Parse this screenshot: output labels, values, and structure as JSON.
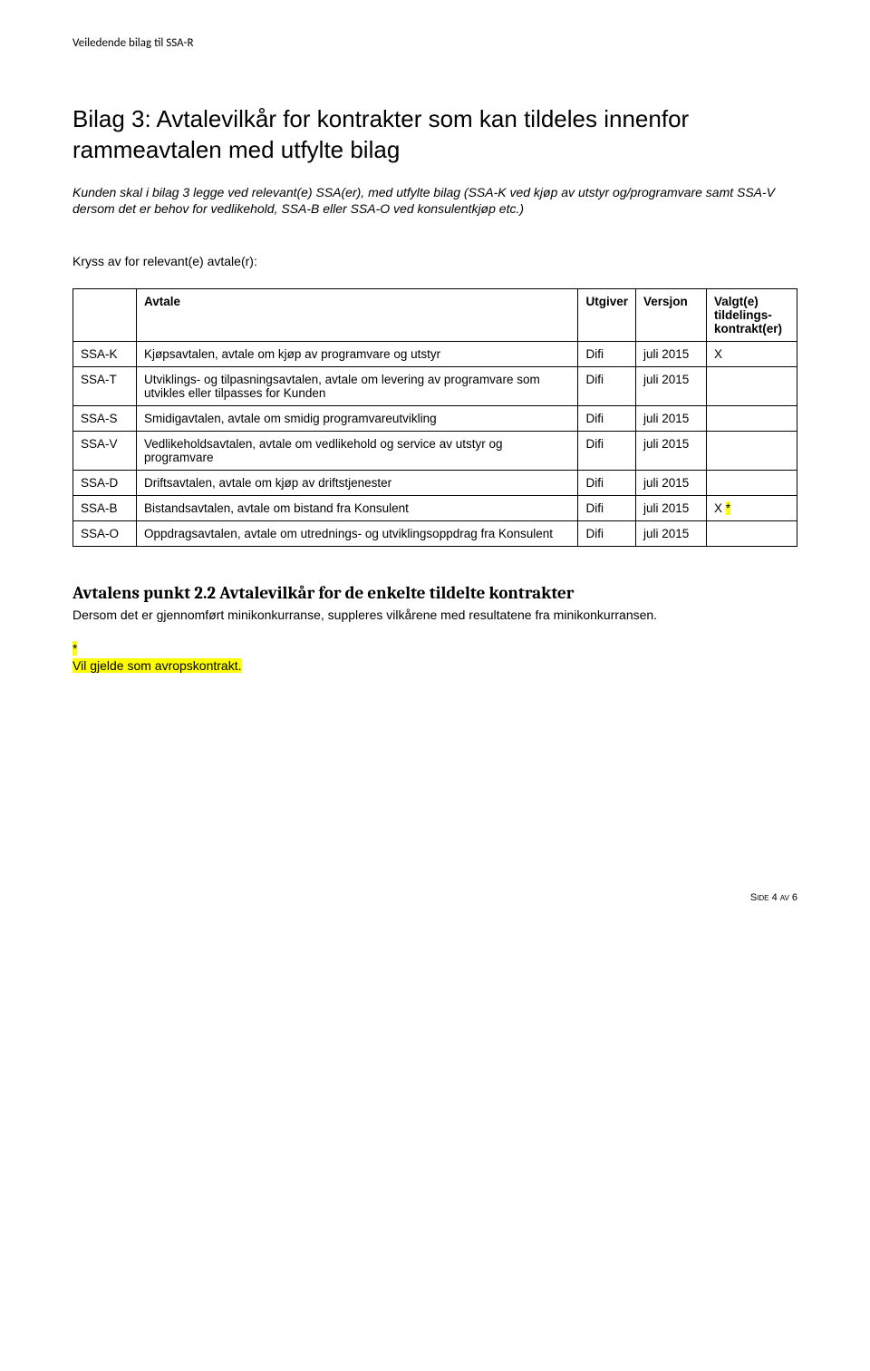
{
  "header": "Veiledende bilag til SSA-R",
  "title": "Bilag 3: Avtalevilkår for kontrakter som kan tildeles innenfor rammeavtalen med utfylte bilag",
  "intro": "Kunden skal i bilag 3 legge ved relevant(e) SSA(er), med utfylte bilag (SSA-K ved kjøp av utstyr og/programvare samt SSA-V dersom det er behov for vedlikehold, SSA-B eller SSA-O ved konsulentkjøp etc.)",
  "kryss": "Kryss av for relevant(e) avtale(r):",
  "table": {
    "headers": {
      "code": "",
      "avtale": "Avtale",
      "utgiver": "Utgiver",
      "versjon": "Versjon",
      "valgt": "Valgt(e) tildelings-kontrakt(er)"
    },
    "rows": [
      {
        "code": "SSA-K",
        "avtale": "Kjøpsavtalen, avtale om kjøp av programvare og utstyr",
        "utgiver": "Difi",
        "versjon": "juli 2015",
        "valgt": "X",
        "valgt_hl": ""
      },
      {
        "code": "SSA-T",
        "avtale": "Utviklings- og tilpasningsavtalen, avtale om levering av programvare som utvikles eller tilpasses for Kunden",
        "utgiver": "Difi",
        "versjon": "juli 2015",
        "valgt": "",
        "valgt_hl": ""
      },
      {
        "code": "SSA-S",
        "avtale": "Smidigavtalen, avtale om smidig programvareutvikling",
        "utgiver": "Difi",
        "versjon": "juli 2015",
        "valgt": "",
        "valgt_hl": ""
      },
      {
        "code": "SSA-V",
        "avtale": "Vedlikeholdsavtalen, avtale om vedlikehold og service av utstyr og programvare",
        "utgiver": "Difi",
        "versjon": "juli 2015",
        "valgt": "",
        "valgt_hl": ""
      },
      {
        "code": "SSA-D",
        "avtale": "Driftsavtalen, avtale om kjøp av driftstjenester",
        "utgiver": "Difi",
        "versjon": "juli 2015",
        "valgt": "",
        "valgt_hl": ""
      },
      {
        "code": "SSA-B",
        "avtale": "Bistandsavtalen, avtale om bistand fra Konsulent",
        "utgiver": "Difi",
        "versjon": "juli 2015",
        "valgt": "X ",
        "valgt_hl": "*"
      },
      {
        "code": "SSA-O",
        "avtale": "Oppdragsavtalen, avtale om utrednings- og utviklingsoppdrag fra Konsulent",
        "utgiver": "Difi",
        "versjon": "juli 2015",
        "valgt": "",
        "valgt_hl": ""
      }
    ]
  },
  "section": {
    "title": "Avtalens punkt 2.2 Avtalevilkår for de enkelte tildelte kontrakter",
    "body": "Dersom det er gjennomført minikonkurranse, suppleres vilkårene med resultatene fra minikonkurransen."
  },
  "footnote": {
    "star": "*",
    "text": "Vil gjelde som avropskontrakt."
  },
  "page_num": "Side 4 av 6"
}
